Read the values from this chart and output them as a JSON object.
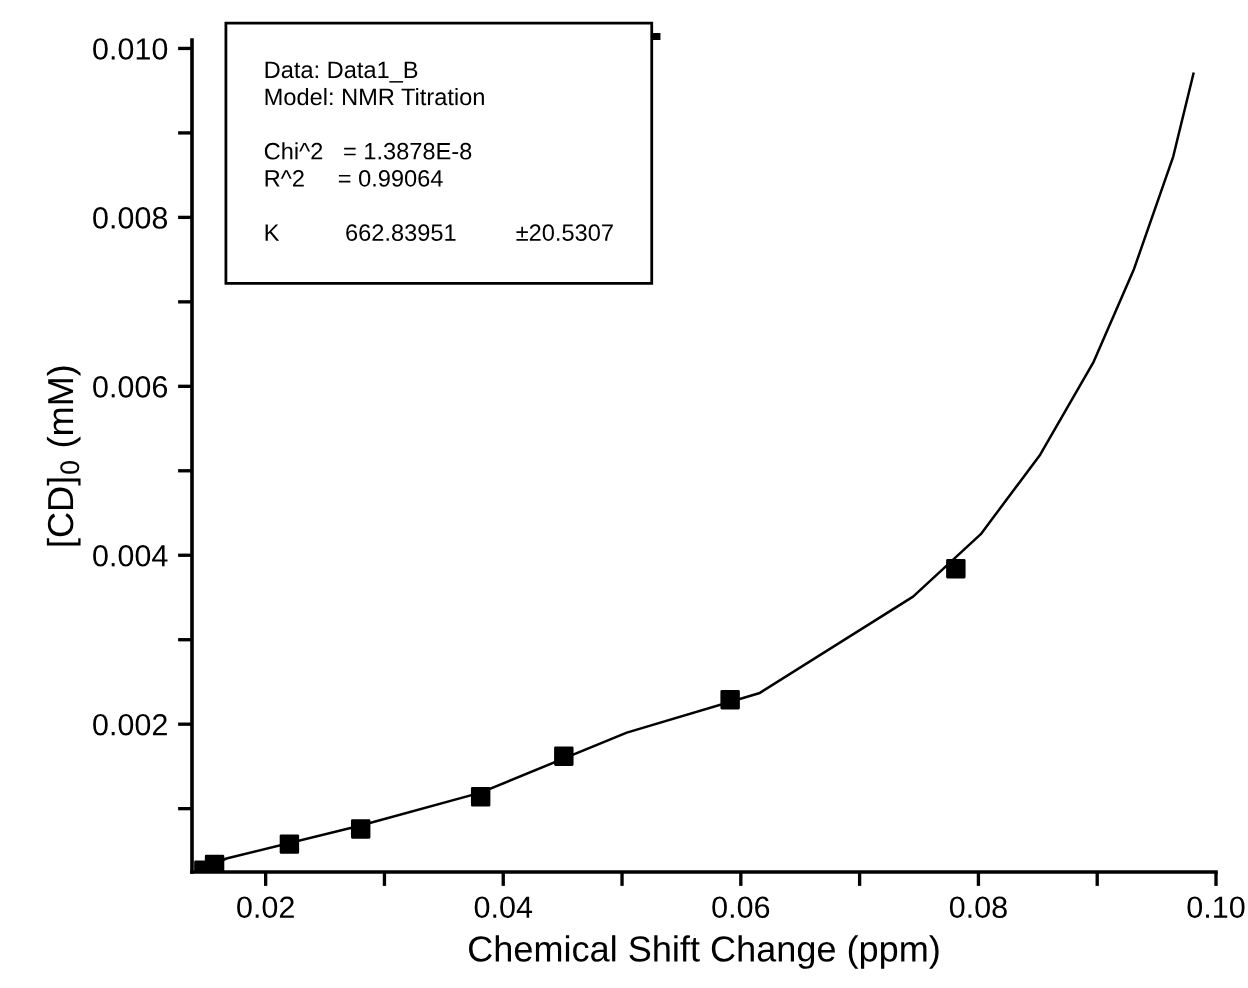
{
  "chart_data": {
    "type": "scatter",
    "xlabel": "Chemical Shift Change (ppm)",
    "ylabel": "[CD]$_{0}$ (mM)",
    "xlim": [
      0.0138,
      0.1
    ],
    "ylim": [
      0.00025,
      0.0101
    ],
    "xticks": [
      0.02,
      {
        "value": 0.03,
        "label": null
      },
      0.04,
      {
        "value": 0.05,
        "label": null
      },
      0.06,
      {
        "value": 0.07,
        "label": null
      },
      0.08,
      {
        "value": 0.09,
        "label": null
      },
      {
        "value": 0.1,
        "label": "0.10"
      }
    ],
    "yticks": [
      {
        "value": 0.001,
        "label": null
      },
      0.002,
      {
        "value": 0.003,
        "label": null
      },
      0.004,
      {
        "value": 0.005,
        "label": null
      },
      0.006,
      {
        "value": 0.007,
        "label": null
      },
      0.008,
      {
        "value": 0.009,
        "label": null
      },
      {
        "value": 0.01,
        "label": "0.010"
      }
    ],
    "marker": "square",
    "grid": false,
    "series": [
      {
        "color": "#000000",
        "x": [
          0.0148,
          0.0157,
          0.022,
          0.028,
          0.0381,
          0.0451,
          0.0591,
          0.0781
        ],
        "values": [
          0.00027,
          0.00034,
          0.00058,
          0.00076,
          0.00114,
          0.00162,
          0.00229,
          0.00384
        ]
      },
      {
        "type": "line",
        "color": "#000000",
        "marker": "none",
        "x": [
          0.0148,
          0.0167,
          0.028,
          0.0381,
          0.0504,
          0.0616,
          0.0745,
          0.0802,
          0.0852,
          0.0897,
          0.0931,
          0.0964,
          0.0981
        ],
        "values": [
          0.00029,
          0.00041,
          0.0008,
          0.00119,
          0.0019,
          0.00237,
          0.00351,
          0.00425,
          0.00519,
          0.00629,
          0.00739,
          0.00872,
          0.0097
        ]
      }
    ],
    "annotations": [
      "Data: Data1_B\nModel: NMR Titration\n\nChi^2   = 1.3878E-8\nR^2     = 0.99064\n\nK          662.83951         ±20.5307"
    ]
  }
}
